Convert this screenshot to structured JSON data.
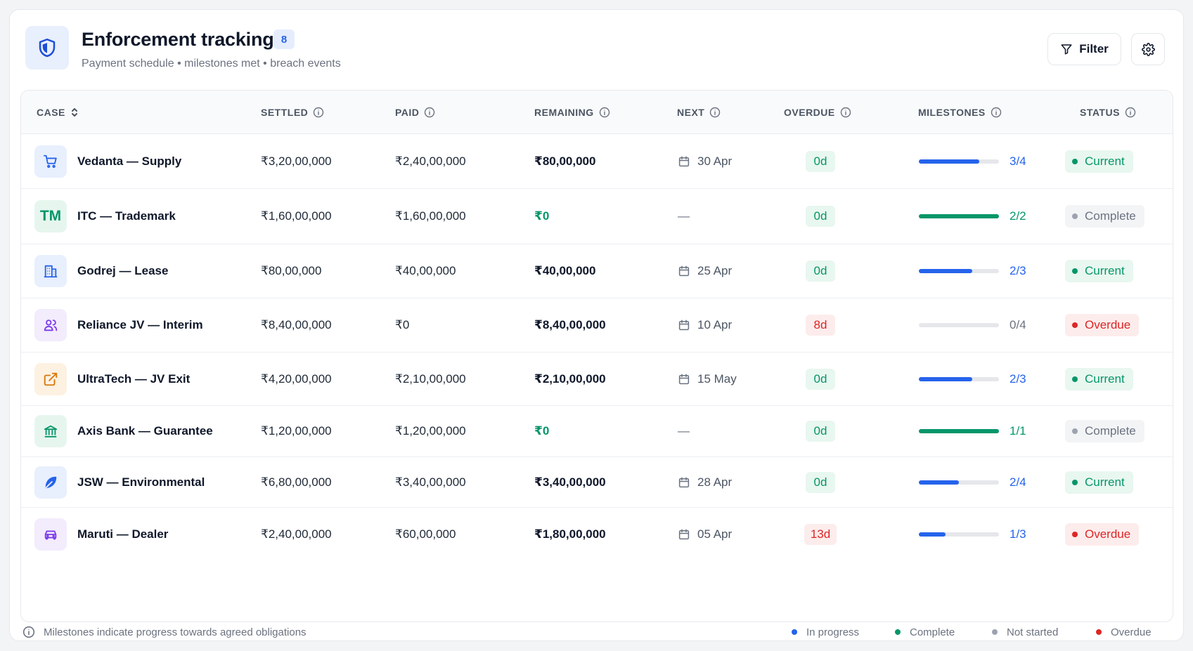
{
  "header": {
    "title": "Enforcement tracking",
    "count": "8",
    "subtitle": "Payment schedule • milestones met • breach events",
    "filter_label": "Filter"
  },
  "columns": {
    "case": "CASE",
    "settled": "SETTLED",
    "paid": "PAID",
    "remaining": "REMAINING",
    "next": "NEXT",
    "overdue": "OVERDUE",
    "milestones": "MILESTONES",
    "status": "STATUS"
  },
  "colors": {
    "accent": "#2563eb",
    "success": "#059669",
    "danger": "#dc2626",
    "neutral": "#9ca3af"
  },
  "rows": [
    {
      "name": "Vedanta — Supply",
      "icon": "cart-icon",
      "settled": "₹3,20,00,000",
      "paid": "₹2,40,00,000",
      "remaining": "₹80,00,000",
      "next": "30 Apr",
      "overdue": "0d",
      "milestones": "3/4",
      "progress": 0.75,
      "status": "Current"
    },
    {
      "name": "ITC — Trademark",
      "icon": "trademark-icon",
      "settled": "₹1,60,00,000",
      "paid": "₹1,60,00,000",
      "remaining": "₹0",
      "next": "—",
      "overdue": "0d",
      "milestones": "2/2",
      "progress": 1.0,
      "status": "Complete"
    },
    {
      "name": "Godrej — Lease",
      "icon": "building-icon",
      "settled": "₹80,00,000",
      "paid": "₹40,00,000",
      "remaining": "₹40,00,000",
      "next": "25 Apr",
      "overdue": "0d",
      "milestones": "2/3",
      "progress": 0.667,
      "status": "Current"
    },
    {
      "name": "Reliance JV — Interim",
      "icon": "users-icon",
      "settled": "₹8,40,00,000",
      "paid": "₹0",
      "remaining": "₹8,40,00,000",
      "next": "10 Apr",
      "overdue": "8d",
      "milestones": "0/4",
      "progress": 0,
      "status": "Overdue"
    },
    {
      "name": "UltraTech — JV Exit",
      "icon": "external-link-icon",
      "settled": "₹4,20,00,000",
      "paid": "₹2,10,00,000",
      "remaining": "₹2,10,00,000",
      "next": "15 May",
      "overdue": "0d",
      "milestones": "2/3",
      "progress": 0.667,
      "status": "Current"
    },
    {
      "name": "Axis Bank — Guarantee",
      "icon": "bank-icon",
      "settled": "₹1,20,00,000",
      "paid": "₹1,20,00,000",
      "remaining": "₹0",
      "next": "—",
      "overdue": "0d",
      "milestones": "1/1",
      "progress": 1.0,
      "status": "Complete"
    },
    {
      "name": "JSW — Environmental",
      "icon": "leaf-icon",
      "settled": "₹6,80,00,000",
      "paid": "₹3,40,00,000",
      "remaining": "₹3,40,00,000",
      "next": "28 Apr",
      "overdue": "0d",
      "milestones": "2/4",
      "progress": 0.5,
      "status": "Current"
    },
    {
      "name": "Maruti — Dealer",
      "icon": "car-icon",
      "settled": "₹2,40,00,000",
      "paid": "₹60,00,000",
      "remaining": "₹1,80,00,000",
      "next": "05 Apr",
      "overdue": "13d",
      "milestones": "1/3",
      "progress": 0.333,
      "status": "Overdue"
    }
  ],
  "footer": {
    "note": "Milestones indicate progress towards agreed obligations",
    "legend": [
      {
        "label": "In progress",
        "color": "#2563eb"
      },
      {
        "label": "Complete",
        "color": "#059669"
      },
      {
        "label": "Not started",
        "color": "#9ca3af"
      },
      {
        "label": "Overdue",
        "color": "#dc2626"
      }
    ]
  }
}
